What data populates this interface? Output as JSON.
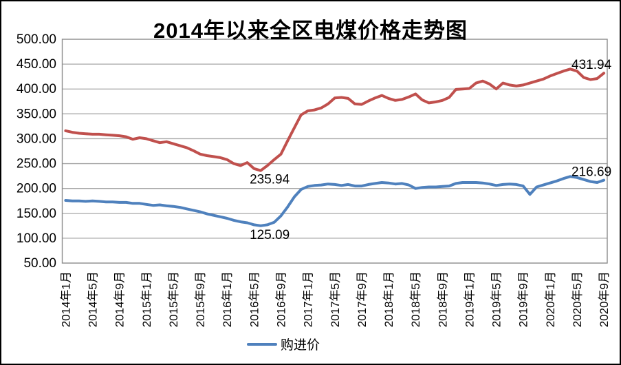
{
  "title": "2014年以来全区电煤价格走势图",
  "colors": {
    "red_line": "#C0504D",
    "blue_line": "#4F81BD",
    "gridline": "#A6A6A6",
    "plot_border": "#8C8C8C",
    "axis_text": "#000000",
    "frame_border": "#000000",
    "background": "#FFFFFF"
  },
  "y_axis": {
    "tick_labels": [
      "500.00",
      "450.00",
      "400.00",
      "350.00",
      "300.00",
      "250.00",
      "200.00",
      "150.00",
      "100.00",
      "50.00"
    ],
    "min": 50,
    "max": 500,
    "step": 50
  },
  "x_axis": {
    "tick_labels": [
      "2014年1月",
      "2014年5月",
      "2014年9月",
      "2015年1月",
      "2015年5月",
      "2015年9月",
      "2016年1月",
      "2016年5月",
      "2016年9月",
      "2017年1月",
      "2017年5月",
      "2017年9月",
      "2018年1月",
      "2018年5月",
      "2018年9月",
      "2019年1月",
      "2019年5月",
      "2019年9月",
      "2020年1月",
      "2020年5月",
      "2020年9月"
    ],
    "months_per_tick": 4
  },
  "legend": {
    "items": [
      {
        "label": "购进价",
        "color": "#4F81BD"
      }
    ]
  },
  "chart_data": {
    "type": "line",
    "title": "2014年以来全区电煤价格走势图",
    "x_start": "2014年1月",
    "x_end": "2020年9月",
    "x_tick_labels": [
      "2014年1月",
      "2014年5月",
      "2014年9月",
      "2015年1月",
      "2015年5月",
      "2015年9月",
      "2016年1月",
      "2016年5月",
      "2016年9月",
      "2017年1月",
      "2017年5月",
      "2017年9月",
      "2018年1月",
      "2018年5月",
      "2018年9月",
      "2019年1月",
      "2019年5月",
      "2019年9月",
      "2020年1月",
      "2020年5月",
      "2020年9月"
    ],
    "ylim": [
      50,
      500
    ],
    "grid": true,
    "legend_position": "bottom",
    "series": [
      {
        "name": "",
        "color": "#C0504D",
        "values": [
          316,
          313,
          311,
          310,
          309,
          309,
          308,
          307,
          306,
          304,
          299,
          302,
          300,
          296,
          292,
          294,
          290,
          286,
          282,
          276,
          269,
          266,
          264,
          262,
          258,
          250,
          246,
          252,
          240,
          235.94,
          246,
          258,
          269,
          296,
          322,
          348,
          356,
          358,
          362,
          370,
          382,
          383,
          381,
          370,
          369,
          376,
          382,
          387,
          381,
          377,
          379,
          384,
          390,
          378,
          372,
          374,
          377,
          383,
          399,
          400,
          401,
          412,
          416,
          410,
          400,
          412,
          408,
          406,
          408,
          412,
          416,
          420,
          426,
          431,
          436,
          440,
          436,
          423,
          419,
          421,
          431.94
        ]
      },
      {
        "name": "购进价",
        "color": "#4F81BD",
        "values": [
          176,
          175,
          175,
          174,
          175,
          174,
          173,
          173,
          172,
          172,
          170,
          170,
          168,
          166,
          167,
          165,
          164,
          162,
          159,
          156,
          153,
          149,
          146,
          143,
          140,
          136,
          133,
          131,
          127,
          125.09,
          127,
          132,
          145,
          163,
          183,
          198,
          204,
          206,
          207,
          209,
          208,
          206,
          208,
          205,
          205,
          208,
          210,
          212,
          211,
          209,
          210,
          207,
          200,
          202,
          203,
          203,
          204,
          205,
          210,
          212,
          212,
          212,
          211,
          209,
          206,
          208,
          209,
          208,
          205,
          188,
          203,
          207,
          211,
          215,
          220,
          224,
          222,
          218,
          214,
          212,
          216.69
        ]
      }
    ],
    "annotations": [
      {
        "text": "235.94",
        "series": 0,
        "index": 29,
        "placement": "below"
      },
      {
        "text": "125.09",
        "series": 1,
        "index": 29,
        "placement": "below"
      },
      {
        "text": "431.94",
        "series": 0,
        "index": 80,
        "placement": "above"
      },
      {
        "text": "216.69",
        "series": 1,
        "index": 80,
        "placement": "above"
      }
    ]
  }
}
